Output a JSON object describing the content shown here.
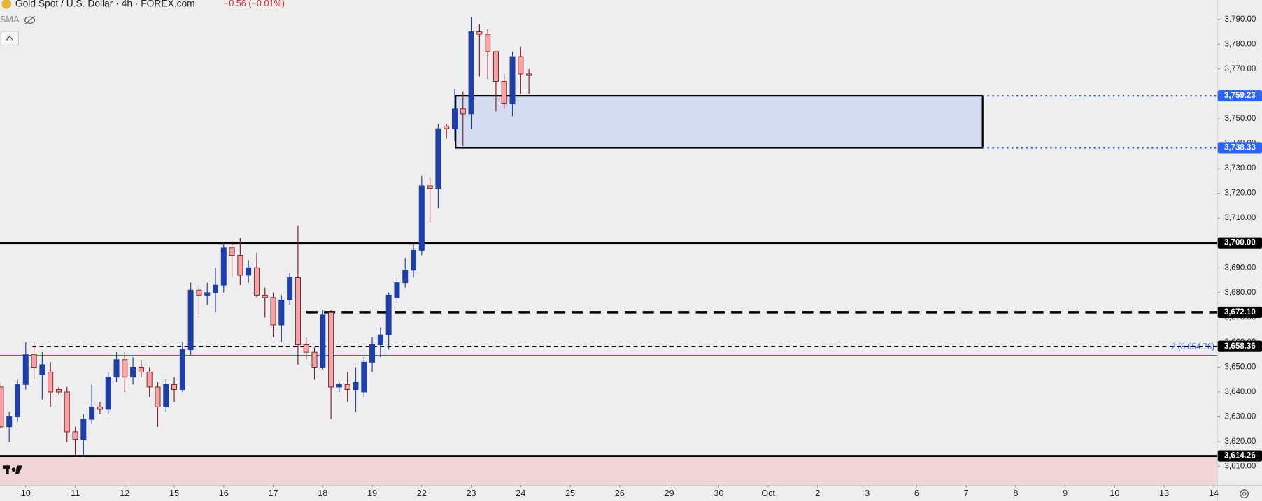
{
  "chart_data": {
    "type": "candlestick",
    "title": "Gold Spot / U.S. Dollar · 4h · FOREX.com",
    "change": "−0.56 (−0.01%)",
    "indicator": "SMA",
    "up_color": "#1f3fa8",
    "down_color": "#f5a3a6",
    "down_edge": "#7a1f24",
    "xlim": [
      -0.12,
      147.4
    ],
    "ylim": [
      3602.6,
      3797.8
    ],
    "xticks": [
      {
        "value": 3,
        "label": "10"
      },
      {
        "value": 9,
        "label": "11"
      },
      {
        "value": 15,
        "label": "12"
      },
      {
        "value": 21,
        "label": "15"
      },
      {
        "value": 27,
        "label": "16"
      },
      {
        "value": 33,
        "label": "17"
      },
      {
        "value": 39,
        "label": "18"
      },
      {
        "value": 45,
        "label": "19"
      },
      {
        "value": 51,
        "label": "22"
      },
      {
        "value": 57,
        "label": "23"
      },
      {
        "value": 63,
        "label": "24"
      },
      {
        "value": 69,
        "label": "25"
      },
      {
        "value": 75,
        "label": "26"
      },
      {
        "value": 81,
        "label": "29"
      },
      {
        "value": 87,
        "label": "30"
      },
      {
        "value": 93,
        "label": "Oct"
      },
      {
        "value": 99,
        "label": "2"
      },
      {
        "value": 105,
        "label": "3"
      },
      {
        "value": 111,
        "label": "6"
      },
      {
        "value": 117,
        "label": "7"
      },
      {
        "value": 123,
        "label": "8"
      },
      {
        "value": 129,
        "label": "9"
      },
      {
        "value": 135,
        "label": "10"
      },
      {
        "value": 141,
        "label": "13"
      },
      {
        "value": 147,
        "label": "14"
      }
    ],
    "yticks": [
      {
        "value": 3610,
        "label": "3,610.00"
      },
      {
        "value": 3620,
        "label": "3,620.00"
      },
      {
        "value": 3630,
        "label": "3,630.00"
      },
      {
        "value": 3640,
        "label": "3,640.00"
      },
      {
        "value": 3650,
        "label": "3,650.00"
      },
      {
        "value": 3660,
        "label": "3,660.00"
      },
      {
        "value": 3670,
        "label": "3,670.00"
      },
      {
        "value": 3680,
        "label": "3,680.00"
      },
      {
        "value": 3690,
        "label": "3,690.00"
      },
      {
        "value": 3700,
        "label": "3,700.00"
      },
      {
        "value": 3710,
        "label": "3,710.00"
      },
      {
        "value": 3720,
        "label": "3,720.00"
      },
      {
        "value": 3730,
        "label": "3,730.00"
      },
      {
        "value": 3740,
        "label": "3,740.00"
      },
      {
        "value": 3750,
        "label": "3,750.00"
      },
      {
        "value": 3760,
        "label": "3,760.00"
      },
      {
        "value": 3770,
        "label": "3,770.00"
      },
      {
        "value": 3780,
        "label": "3,780.00"
      },
      {
        "value": 3790,
        "label": "3,790.00"
      }
    ],
    "open": [
      3642,
      3626,
      3630,
      3643,
      3655,
      3647,
      3648,
      3641,
      3640,
      3624,
      3621,
      3629,
      3634,
      3633,
      3646,
      3653,
      3646,
      3650,
      3648,
      3642,
      3634,
      3643,
      3641,
      3657,
      3681,
      3679,
      3680,
      3683,
      3698,
      3695,
      3687,
      3690,
      3679,
      3678,
      3667,
      3677,
      3686,
      3659,
      3656,
      3650,
      3672,
      3642,
      3643,
      3641,
      3640,
      3652,
      3659,
      3663,
      3678,
      3684,
      3689,
      3697,
      3723,
      3722,
      3747,
      3746,
      3754,
      3752,
      3785,
      3784,
      3777,
      3765,
      3756,
      3775,
      3768
    ],
    "high": [
      3643,
      3632,
      3645,
      3660,
      3660,
      3656,
      3652,
      3642,
      3642,
      3626,
      3631,
      3643,
      3636,
      3648,
      3656,
      3656,
      3654,
      3653,
      3650,
      3644,
      3645,
      3646,
      3660,
      3684,
      3683,
      3684,
      3690,
      3700,
      3701,
      3702,
      3693,
      3696,
      3682,
      3680,
      3679,
      3688,
      3707,
      3662,
      3658,
      3673,
      3673,
      3644,
      3648,
      3650,
      3654,
      3662,
      3666,
      3680,
      3686,
      3694,
      3700,
      3727,
      3726,
      3748,
      3748,
      3762,
      3761,
      3791,
      3788,
      3786,
      3777,
      3768,
      3777,
      3779,
      3770
    ],
    "low": [
      3625,
      3620,
      3628,
      3641,
      3645,
      3637,
      3634,
      3639,
      3620,
      3614,
      3614,
      3627,
      3631,
      3631,
      3644,
      3640,
      3643,
      3646,
      3638,
      3626,
      3632,
      3636,
      3640,
      3655,
      3670,
      3675,
      3672,
      3680,
      3686,
      3683,
      3684,
      3678,
      3670,
      3662,
      3660,
      3675,
      3651,
      3653,
      3645,
      3649,
      3629,
      3640,
      3636,
      3632,
      3638,
      3648,
      3654,
      3657,
      3676,
      3682,
      3686,
      3695,
      3708,
      3714,
      3742,
      3741,
      3739,
      3746,
      3767,
      3766,
      3753,
      3754,
      3751,
      3760,
      3760
    ],
    "close": [
      3626,
      3630,
      3643,
      3655,
      3650,
      3651,
      3640,
      3640,
      3624,
      3621,
      3629,
      3634,
      3633,
      3646,
      3653,
      3646,
      3650,
      3648,
      3642,
      3634,
      3643,
      3641,
      3657,
      3681,
      3679,
      3680,
      3683,
      3698,
      3695,
      3687,
      3690,
      3679,
      3678,
      3667,
      3677,
      3686,
      3659,
      3656,
      3650,
      3671,
      3642,
      3643,
      3641,
      3644,
      3652,
      3659,
      3663,
      3679,
      3684,
      3689,
      3697,
      3723,
      3722,
      3746,
      3746,
      3754,
      3752,
      3785,
      3784,
      3777,
      3765,
      3756,
      3775,
      3768,
      3767.4
    ],
    "zone": {
      "top": 3759.23,
      "bottom": 3738.33,
      "x": [
        55.1,
        119
      ],
      "fill": "#d3dcf0",
      "edge": "#000000"
    },
    "levels": [
      {
        "value": 3759.23,
        "label": "3,759.23",
        "style": "dotted",
        "color": "#2962ff",
        "from": 119
      },
      {
        "value": 3738.33,
        "label": "3,738.33",
        "style": "dotted",
        "color": "#2962ff",
        "from": 119
      },
      {
        "value": 3700,
        "label": "3,700.00",
        "style": "solid",
        "color": "#000000"
      },
      {
        "value": 3672.1,
        "label": "3,672.10",
        "style": "dashed-thick",
        "color": "#000000",
        "from": 37
      },
      {
        "value": 3658.36,
        "label": "3,658.36",
        "style": "dashed",
        "color": "#000000",
        "from": 3.8
      },
      {
        "value": 3614.26,
        "label": "3,614.26",
        "style": "solid",
        "color": "#000000",
        "fill_below": "#f0d6d9"
      }
    ],
    "fib": {
      "value": 3654.76,
      "label": "2 (3,654.76)",
      "color": "#2962ff"
    }
  }
}
